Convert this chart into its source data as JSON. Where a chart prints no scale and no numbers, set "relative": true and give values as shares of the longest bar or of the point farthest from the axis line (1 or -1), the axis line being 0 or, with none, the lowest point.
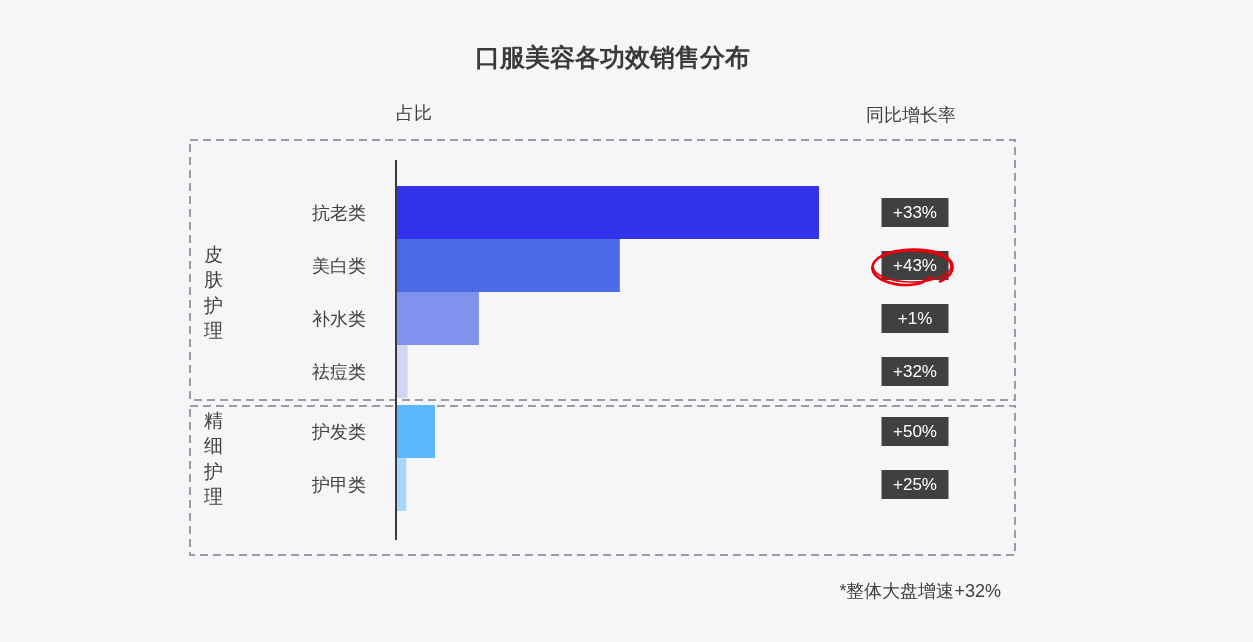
{
  "chart_data": {
    "type": "bar",
    "orientation": "horizontal",
    "relative": true,
    "title": "口服美容各功效销售分布",
    "xlabel": "占比",
    "categories": [
      "抗老类",
      "美白类",
      "补水类",
      "祛痘类",
      "护发类",
      "护甲类"
    ],
    "series": [
      {
        "colors": [
          "#3333ee",
          "#4d6be9",
          "#7f93ee",
          "#d0d6f5",
          null,
          null
        ],
        "values": [
          1,
          0.528,
          0.194,
          0.025,
          null,
          null
        ]
      },
      {
        "colors": [
          null,
          null,
          null,
          null,
          "#5bb8fe",
          "#a6d6fb"
        ],
        "values": [
          null,
          null,
          null,
          null,
          0.09,
          0.022
        ]
      }
    ],
    "annotations": [
      "同比增长率",
      "+33%",
      "+43%",
      "+1%",
      "+32%",
      "+50%",
      "+25%",
      "*整体大盘增速+32%",
      "皮肤护理",
      "精细护理"
    ]
  }
}
